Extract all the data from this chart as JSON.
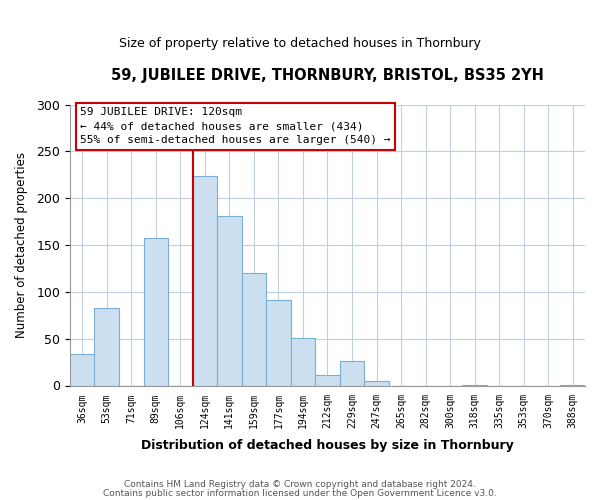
{
  "title": "59, JUBILEE DRIVE, THORNBURY, BRISTOL, BS35 2YH",
  "subtitle": "Size of property relative to detached houses in Thornbury",
  "xlabel": "Distribution of detached houses by size in Thornbury",
  "ylabel": "Number of detached properties",
  "bar_labels": [
    "36sqm",
    "53sqm",
    "71sqm",
    "89sqm",
    "106sqm",
    "124sqm",
    "141sqm",
    "159sqm",
    "177sqm",
    "194sqm",
    "212sqm",
    "229sqm",
    "247sqm",
    "265sqm",
    "282sqm",
    "300sqm",
    "318sqm",
    "335sqm",
    "353sqm",
    "370sqm",
    "388sqm"
  ],
  "bar_values": [
    34,
    83,
    0,
    158,
    0,
    224,
    181,
    120,
    91,
    51,
    11,
    26,
    5,
    0,
    0,
    0,
    1,
    0,
    0,
    0,
    1
  ],
  "bar_color": "#ccdff0",
  "bar_edge_color": "#7aafd4",
  "vline_x": 5,
  "vline_color": "#cc0000",
  "annotation_title": "59 JUBILEE DRIVE: 120sqm",
  "annotation_line1": "← 44% of detached houses are smaller (434)",
  "annotation_line2": "55% of semi-detached houses are larger (540) →",
  "annotation_box_color": "#ffffff",
  "annotation_box_edge": "#cc0000",
  "footer1": "Contains HM Land Registry data © Crown copyright and database right 2024.",
  "footer2": "Contains public sector information licensed under the Open Government Licence v3.0.",
  "ylim": [
    0,
    300
  ],
  "yticks": [
    0,
    50,
    100,
    150,
    200,
    250,
    300
  ],
  "bg_color": "#ffffff",
  "grid_color": "#c0d0e0"
}
